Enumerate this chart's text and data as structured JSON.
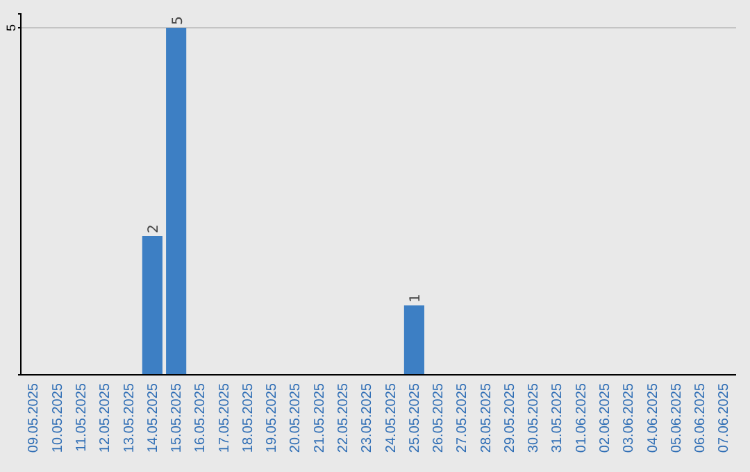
{
  "chart_data": {
    "type": "bar",
    "categories": [
      "09.05.2025",
      "10.05.2025",
      "11.05.2025",
      "12.05.2025",
      "13.05.2025",
      "14.05.2025",
      "15.05.2025",
      "16.05.2025",
      "17.05.2025",
      "18.05.2025",
      "19.05.2025",
      "20.05.2025",
      "21.05.2025",
      "22.05.2025",
      "23.05.2025",
      "24.05.2025",
      "25.05.2025",
      "26.05.2025",
      "27.05.2025",
      "28.05.2025",
      "29.05.2025",
      "30.05.2025",
      "31.05.2025",
      "01.06.2025",
      "02.06.2025",
      "03.06.2025",
      "04.06.2025",
      "05.06.2025",
      "06.06.2025",
      "07.06.2025"
    ],
    "values": [
      0,
      0,
      0,
      0,
      0,
      2,
      5,
      0,
      0,
      0,
      0,
      0,
      0,
      0,
      0,
      0,
      1,
      0,
      0,
      0,
      0,
      0,
      0,
      0,
      0,
      0,
      0,
      0,
      0,
      0
    ],
    "value_labels": [
      null,
      null,
      null,
      null,
      null,
      "2",
      "5",
      null,
      null,
      null,
      null,
      null,
      null,
      null,
      null,
      null,
      "1",
      null,
      null,
      null,
      null,
      null,
      null,
      null,
      null,
      null,
      null,
      null,
      null,
      null
    ],
    "color": "#3d7fc4",
    "ylim": [
      0,
      5.2
    ],
    "yticks": [
      5
    ],
    "grid": "y"
  }
}
